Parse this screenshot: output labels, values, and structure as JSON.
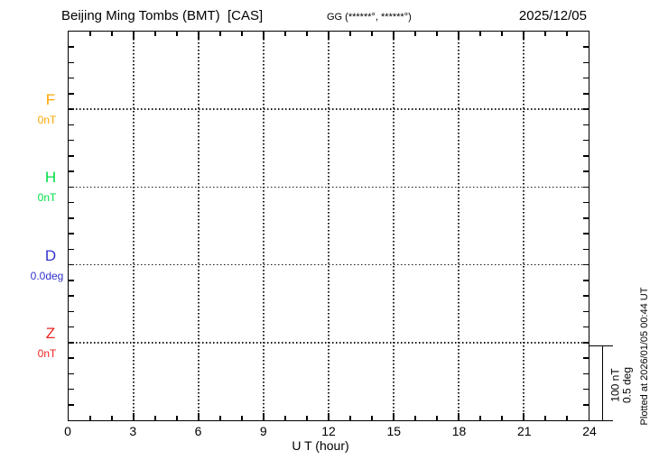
{
  "header": {
    "title": "Beijing Ming Tombs (BMT)  [CAS]",
    "coordinates": "GG (******°, ******°)",
    "date": "2025/12/05"
  },
  "chart_data": {
    "type": "line",
    "title": "Beijing Ming Tombs (BMT) [CAS]",
    "station": "Beijing Ming Tombs",
    "station_code": "BMT",
    "agency": "CAS",
    "date": "2025/12/05",
    "xlabel": "U T (hour)",
    "x_range": [
      0,
      24
    ],
    "x_major_tick_hours": [
      0,
      3,
      6,
      9,
      12,
      15,
      18,
      21,
      24
    ],
    "x_tick_labels": [
      "0",
      "3",
      "6",
      "9",
      "12",
      "15",
      "18",
      "21",
      "24"
    ],
    "x_minor_step_hours": 1,
    "y_minor_divisions": 25,
    "y_divisions_per_channel": 5,
    "grid": "dotted vertical gridlines every 3 hours; dotted horizontal baseline for each channel; minor ticks inward on all four edges",
    "legend_position": "left margin, one colored label per channel",
    "series": [
      {
        "name": "F",
        "unit_label": "0nT",
        "color": "#FFA500",
        "baseline_fraction": 0.2,
        "values": [],
        "data_plotted": false
      },
      {
        "name": "H",
        "unit_label": "0nT",
        "color": "#00DD44",
        "baseline_fraction": 0.4,
        "values": [],
        "data_plotted": false
      },
      {
        "name": "D",
        "unit_label": "0.0deg",
        "color": "#3333CC",
        "baseline_fraction": 0.6,
        "values": [],
        "data_plotted": false
      },
      {
        "name": "Z",
        "unit_label": "0nT",
        "color": "#EE2222",
        "baseline_fraction": 0.8,
        "values": [],
        "data_plotted": false
      }
    ],
    "scale_bar": {
      "line1": "100 nT",
      "line2": "0.5 deg",
      "span_divisions": 5
    },
    "footer_note": "Plotted at 2026/01/05 00:44 UT"
  }
}
